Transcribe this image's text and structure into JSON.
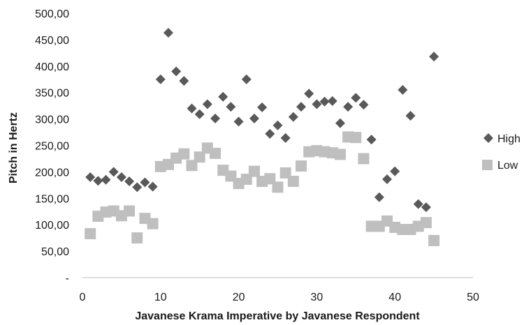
{
  "chart_data": {
    "type": "scatter",
    "xlabel": "Javanese Krama Imperative by Javanese Respondent",
    "ylabel": "Pitch in Hertz",
    "xlim": [
      0,
      50
    ],
    "ylim": [
      0,
      500
    ],
    "x_ticks": [
      "0",
      "10",
      "20",
      "30",
      "40",
      "50"
    ],
    "y_ticks": [
      "-",
      "50,00",
      "100,00",
      "150,00",
      "200,00",
      "250,00",
      "300,00",
      "350,00",
      "400,00",
      "450,00",
      "500,00"
    ],
    "grid": false,
    "legend_position": "right",
    "series": [
      {
        "name": "High",
        "marker": "diamond",
        "color": "#595959",
        "x": [
          1,
          2,
          3,
          4,
          5,
          6,
          7,
          8,
          9,
          10,
          11,
          12,
          13,
          14,
          15,
          16,
          17,
          18,
          19,
          20,
          21,
          22,
          23,
          24,
          25,
          26,
          27,
          28,
          29,
          30,
          31,
          32,
          33,
          34,
          35,
          36,
          37,
          38,
          39,
          40,
          41,
          42,
          43,
          44,
          45
        ],
        "y": [
          190,
          183,
          185,
          200,
          190,
          182,
          171,
          180,
          172,
          375,
          463,
          390,
          372,
          320,
          309,
          328,
          301,
          342,
          323,
          295,
          375,
          301,
          322,
          272,
          288,
          264,
          304,
          323,
          348,
          328,
          333,
          334,
          292,
          323,
          340,
          327,
          261,
          152,
          186,
          201,
          355,
          306,
          139,
          133,
          418
        ]
      },
      {
        "name": "Low",
        "marker": "square",
        "color": "#bfbfbf",
        "x": [
          1,
          2,
          3,
          4,
          5,
          6,
          7,
          8,
          9,
          10,
          11,
          12,
          13,
          14,
          15,
          16,
          17,
          18,
          19,
          20,
          21,
          22,
          23,
          24,
          25,
          26,
          27,
          28,
          29,
          30,
          31,
          32,
          33,
          34,
          35,
          36,
          37,
          38,
          39,
          40,
          41,
          42,
          43,
          44,
          45
        ],
        "y": [
          83,
          116,
          124,
          126,
          117,
          126,
          75,
          112,
          102,
          210,
          214,
          226,
          234,
          212,
          228,
          245,
          235,
          203,
          192,
          178,
          186,
          201,
          182,
          187,
          171,
          198,
          182,
          211,
          238,
          240,
          238,
          236,
          233,
          266,
          265,
          225,
          97,
          97,
          107,
          95,
          91,
          91,
          97,
          104,
          70
        ]
      }
    ]
  }
}
